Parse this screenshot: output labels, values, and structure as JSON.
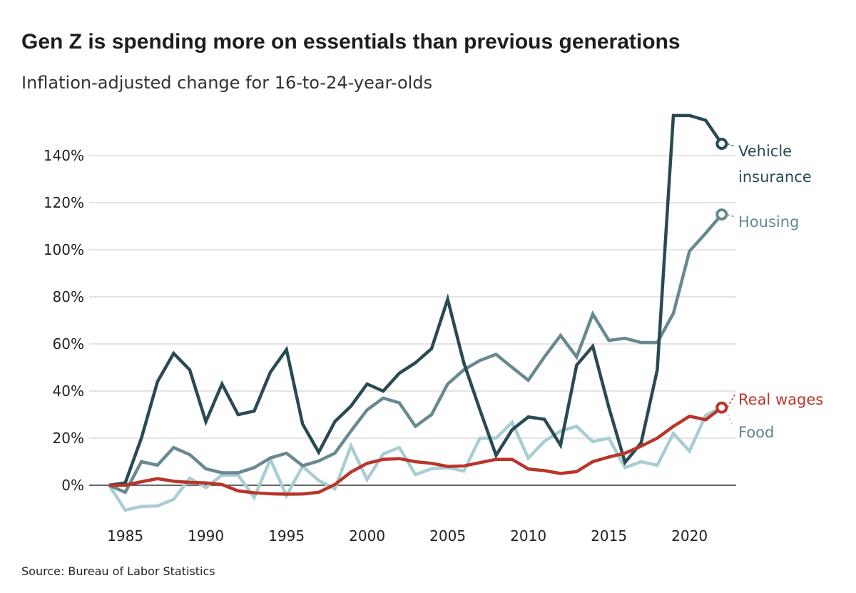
{
  "chart_data": {
    "type": "line",
    "title": "Gen Z is spending more on essentials than previous generations",
    "subtitle": "Inflation-adjusted change for 16-to-24-year-olds",
    "source": "Source: Bureau of Labor Statistics",
    "xlabel": "",
    "ylabel": "",
    "xlim": [
      1984,
      2022
    ],
    "ylim": [
      -12,
      160
    ],
    "grid": true,
    "x_ticks": [
      "1985",
      "1990",
      "1995",
      "2000",
      "2005",
      "2010",
      "2015",
      "2020"
    ],
    "y_ticks": [
      "0%",
      "20%",
      "40%",
      "60%",
      "80%",
      "100%",
      "120%",
      "140%"
    ],
    "legend": "direct labels at line ends (right)",
    "x": [
      1984,
      1985,
      1986,
      1987,
      1988,
      1989,
      1990,
      1991,
      1992,
      1993,
      1994,
      1995,
      1996,
      1997,
      1998,
      1999,
      2000,
      2001,
      2002,
      2003,
      2004,
      2005,
      2006,
      2007,
      2008,
      2009,
      2010,
      2011,
      2012,
      2013,
      2014,
      2015,
      2016,
      2017,
      2018,
      2019,
      2020,
      2021,
      2022
    ],
    "series": [
      {
        "name": "Vehicle insurance",
        "label_lines": [
          "Vehicle",
          "insurance"
        ],
        "color": "#2a4a53",
        "values": [
          0,
          1,
          20,
          44,
          56,
          49,
          27,
          43,
          30,
          31.5,
          48,
          57.6,
          26,
          14,
          27,
          33.6,
          43,
          40,
          47.6,
          52,
          58,
          79,
          52,
          32,
          12.7,
          23.6,
          29,
          28,
          17,
          51,
          59,
          33,
          9.7,
          18,
          49,
          157,
          157,
          155,
          145
        ]
      },
      {
        "name": "Housing",
        "label_lines": [
          "Housing"
        ],
        "color": "#67898f",
        "values": [
          0,
          -3,
          10,
          8.5,
          16,
          13,
          7,
          5.3,
          5.3,
          7.5,
          11.6,
          13.6,
          8.3,
          10.3,
          13.6,
          23,
          32,
          37,
          35,
          25,
          30,
          43,
          49,
          53,
          55.6,
          50,
          44.6,
          54.5,
          63.6,
          54.5,
          72.7,
          61.5,
          62.4,
          60.6,
          60.6,
          73,
          99.4,
          107,
          115
        ]
      },
      {
        "name": "Food",
        "label_lines": [
          "Food"
        ],
        "color": "#a8cdd3",
        "label_color": "#5f8088",
        "values": [
          0,
          -10.6,
          -9,
          -8.8,
          -6,
          3,
          -1,
          4.3,
          4.3,
          -5.2,
          11,
          -4.5,
          8,
          2,
          -1.5,
          16.7,
          2.4,
          13.3,
          16,
          4.5,
          7,
          7.5,
          6,
          20,
          20,
          26.7,
          11.5,
          18.7,
          23,
          25,
          18.5,
          20,
          7.5,
          10,
          8.5,
          22,
          14.5,
          29.7,
          33
        ]
      },
      {
        "name": "Real wages",
        "label_lines": [
          "Real wages"
        ],
        "color": "#b8352a",
        "values": [
          0,
          0,
          1.5,
          2.8,
          1.7,
          1.2,
          1,
          0.3,
          -2.4,
          -3.2,
          -3.6,
          -3.8,
          -3.7,
          -3,
          0.3,
          5.6,
          9.3,
          11,
          11.3,
          10,
          9.3,
          8,
          8.2,
          9.6,
          11,
          11,
          6.9,
          6.2,
          5,
          5.8,
          10,
          12,
          13.6,
          16.6,
          20,
          25,
          29.3,
          27.8,
          33
        ]
      }
    ]
  }
}
